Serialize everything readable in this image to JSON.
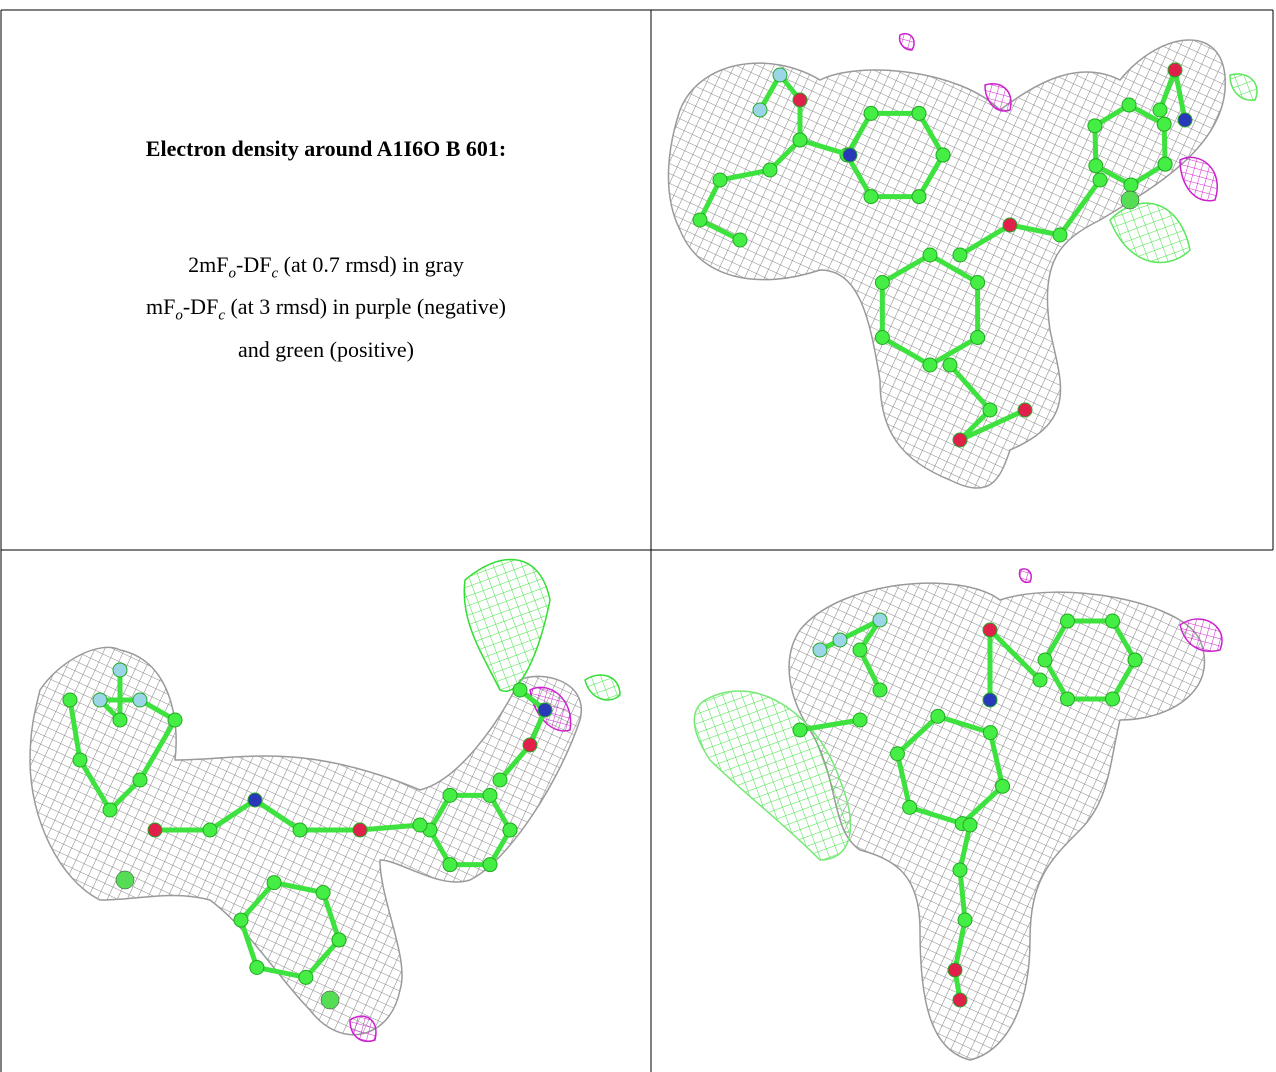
{
  "title": "Electron density around A1I6O B 601:",
  "legend": {
    "lines": [
      [
        "2mF",
        "o",
        "-DF",
        "c",
        " (at 0.7 rmsd) in gray"
      ],
      [
        "mF",
        "o",
        "-DF",
        "c",
        " (at 3 rmsd) in purple (negative)"
      ],
      [
        "and green (positive)"
      ]
    ]
  }
}
